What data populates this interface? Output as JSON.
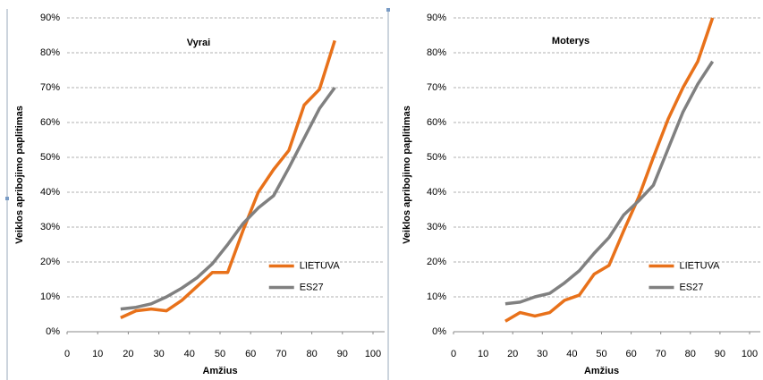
{
  "chart_data": [
    {
      "type": "line",
      "title": "Vyrai",
      "xlabel": "Amžius",
      "ylabel": "Veiklos apribojimo paplitimas",
      "x": [
        17.5,
        22.5,
        27.5,
        32.5,
        37.5,
        42.5,
        47.5,
        52.5,
        57.5,
        62.5,
        67.5,
        72.5,
        77.5,
        82.5,
        87.5
      ],
      "series": [
        {
          "name": "LIETUVA",
          "color": "#e8711a",
          "values": [
            4,
            6,
            6.5,
            6,
            9,
            13,
            17,
            17,
            29,
            40,
            46.5,
            52,
            65,
            69.5,
            83.5
          ]
        },
        {
          "name": "ES27",
          "color": "#808080",
          "values": [
            6.5,
            7,
            8,
            10,
            12.5,
            15.5,
            19.5,
            25,
            31,
            35.5,
            39,
            47,
            55.5,
            64,
            70
          ]
        }
      ],
      "xlim": [
        0,
        100
      ],
      "xticks": [
        0,
        10,
        20,
        30,
        40,
        50,
        60,
        70,
        80,
        90,
        100
      ],
      "ylim": [
        0,
        90
      ],
      "yticks": [
        {
          "value": 0,
          "label": "0%"
        },
        {
          "value": 10,
          "label": "10%"
        },
        {
          "value": 20,
          "label": "20%"
        },
        {
          "value": 30,
          "label": "30%"
        },
        {
          "value": 40,
          "label": "40%"
        },
        {
          "value": 50,
          "label": "50%"
        },
        {
          "value": 60,
          "label": "60%"
        },
        {
          "value": 70,
          "label": "70%"
        },
        {
          "value": 80,
          "label": "80%"
        },
        {
          "value": 90,
          "label": "90%"
        }
      ],
      "grid": true,
      "legend": "right"
    },
    {
      "type": "line",
      "title": "Moterys",
      "xlabel": "Amžius",
      "ylabel": "Veiklos apribojimo paplitimas",
      "x": [
        17.5,
        22.5,
        27.5,
        32.5,
        37.5,
        42.5,
        47.5,
        52.5,
        57.5,
        62.5,
        67.5,
        72.5,
        77.5,
        82.5,
        87.5
      ],
      "series": [
        {
          "name": "LIETUVA",
          "color": "#e8711a",
          "values": [
            3,
            5.5,
            4.5,
            5.5,
            9,
            10.5,
            16.5,
            19,
            29,
            38.5,
            50,
            61,
            70,
            77.5,
            90
          ]
        },
        {
          "name": "ES27",
          "color": "#808080",
          "values": [
            8,
            8.5,
            10,
            11,
            14,
            17.5,
            22.5,
            27,
            33.5,
            37.5,
            42,
            52.5,
            63,
            71,
            77.5
          ]
        }
      ],
      "xlim": [
        0,
        100
      ],
      "xticks": [
        0,
        10,
        20,
        30,
        40,
        50,
        60,
        70,
        80,
        90,
        100
      ],
      "ylim": [
        0,
        90
      ],
      "yticks": [
        {
          "value": 0,
          "label": "0%"
        },
        {
          "value": 10,
          "label": "10%"
        },
        {
          "value": 20,
          "label": "20%"
        },
        {
          "value": 30,
          "label": "30%"
        },
        {
          "value": 40,
          "label": "40%"
        },
        {
          "value": 50,
          "label": "50%"
        },
        {
          "value": 60,
          "label": "60%"
        },
        {
          "value": 70,
          "label": "70%"
        },
        {
          "value": 80,
          "label": "80%"
        },
        {
          "value": 90,
          "label": "90%"
        }
      ],
      "grid": true,
      "legend": "right"
    }
  ]
}
